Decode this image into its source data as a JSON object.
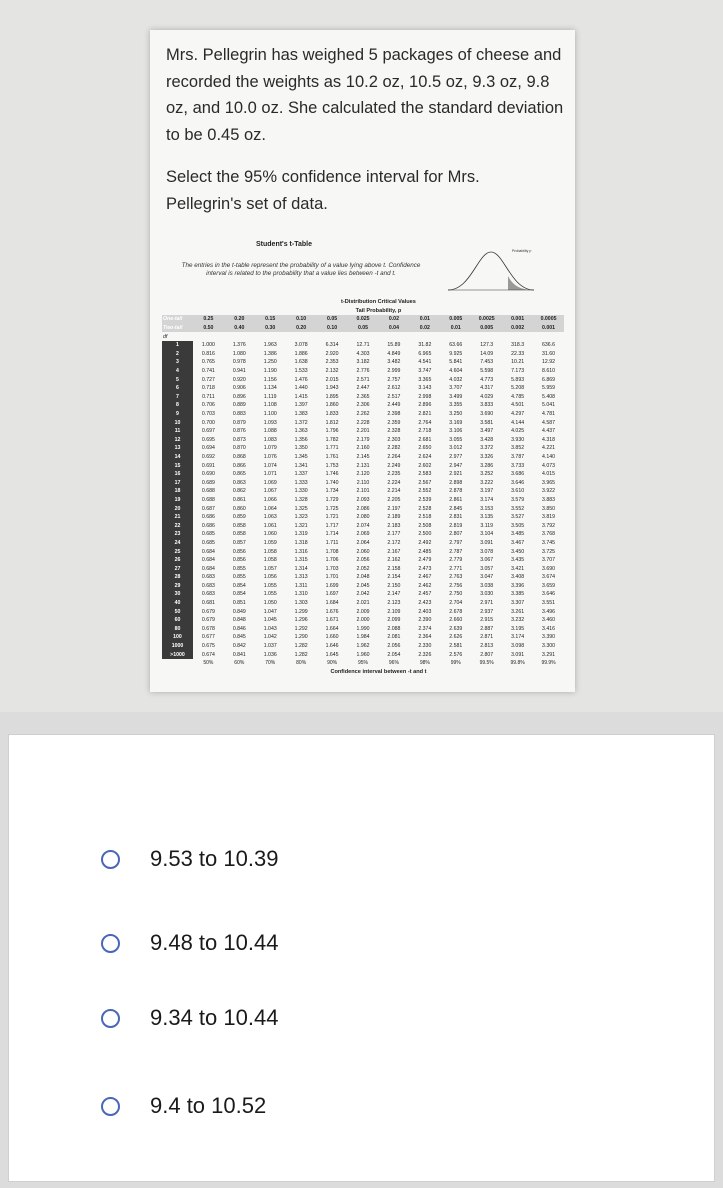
{
  "question": {
    "text": "Mrs. Pellegrin has weighed 5 packages of cheese and recorded the weights as 10.2 oz, 10.5 oz, 9.3 oz, 9.8 oz, and 10.0 oz.  She calculated the standard deviation to be 0.45 oz.",
    "prompt": "Select the 95% confidence interval for Mrs. Pellegrin's set of data."
  },
  "t_table": {
    "title": "Student's t-Table",
    "description": "The entries in the t-table represent the probability of a value lying above t. Confidence interval is related to the probability that a value lies between -t and t.",
    "figure_label": "Probability p",
    "header": "t-Distribution Critical Values",
    "tail_header": "Tail Probability, p",
    "one_tail_label": "One-tail",
    "one_tail": [
      "0.25",
      "0.20",
      "0.15",
      "0.10",
      "0.05",
      "0.025",
      "0.02",
      "0.01",
      "0.005",
      "0.0025",
      "0.001",
      "0.0005"
    ],
    "two_tail_label": "Two-tail",
    "two_tail": [
      "0.50",
      "0.40",
      "0.30",
      "0.20",
      "0.10",
      "0.05",
      "0.04",
      "0.02",
      "0.01",
      "0.005",
      "0.002",
      "0.001"
    ],
    "df_label": "df",
    "rows": [
      {
        "df": "1",
        "values": [
          "1.000",
          "1.376",
          "1.963",
          "3.078",
          "6.314",
          "12.71",
          "15.89",
          "31.82",
          "63.66",
          "127.3",
          "318.3",
          "636.6"
        ]
      },
      {
        "df": "2",
        "values": [
          "0.816",
          "1.080",
          "1.386",
          "1.886",
          "2.920",
          "4.303",
          "4.849",
          "6.965",
          "9.925",
          "14.09",
          "22.33",
          "31.60"
        ]
      },
      {
        "df": "3",
        "values": [
          "0.765",
          "0.978",
          "1.250",
          "1.638",
          "2.353",
          "3.182",
          "3.482",
          "4.541",
          "5.841",
          "7.453",
          "10.21",
          "12.92"
        ]
      },
      {
        "df": "4",
        "values": [
          "0.741",
          "0.941",
          "1.190",
          "1.533",
          "2.132",
          "2.776",
          "2.999",
          "3.747",
          "4.604",
          "5.598",
          "7.173",
          "8.610"
        ]
      },
      {
        "df": "5",
        "values": [
          "0.727",
          "0.920",
          "1.156",
          "1.476",
          "2.015",
          "2.571",
          "2.757",
          "3.365",
          "4.032",
          "4.773",
          "5.893",
          "6.869"
        ]
      },
      {
        "df": "6",
        "values": [
          "0.718",
          "0.906",
          "1.134",
          "1.440",
          "1.943",
          "2.447",
          "2.612",
          "3.143",
          "3.707",
          "4.317",
          "5.208",
          "5.959"
        ]
      },
      {
        "df": "7",
        "values": [
          "0.711",
          "0.896",
          "1.119",
          "1.415",
          "1.895",
          "2.365",
          "2.517",
          "2.998",
          "3.499",
          "4.029",
          "4.785",
          "5.408"
        ]
      },
      {
        "df": "8",
        "values": [
          "0.706",
          "0.889",
          "1.108",
          "1.397",
          "1.860",
          "2.306",
          "2.449",
          "2.896",
          "3.355",
          "3.833",
          "4.501",
          "5.041"
        ]
      },
      {
        "df": "9",
        "values": [
          "0.703",
          "0.883",
          "1.100",
          "1.383",
          "1.833",
          "2.262",
          "2.398",
          "2.821",
          "3.250",
          "3.690",
          "4.297",
          "4.781"
        ]
      },
      {
        "df": "10",
        "values": [
          "0.700",
          "0.879",
          "1.093",
          "1.372",
          "1.812",
          "2.228",
          "2.359",
          "2.764",
          "3.169",
          "3.581",
          "4.144",
          "4.587"
        ]
      },
      {
        "df": "11",
        "values": [
          "0.697",
          "0.876",
          "1.088",
          "1.363",
          "1.796",
          "2.201",
          "2.328",
          "2.718",
          "3.106",
          "3.497",
          "4.025",
          "4.437"
        ]
      },
      {
        "df": "12",
        "values": [
          "0.695",
          "0.873",
          "1.083",
          "1.356",
          "1.782",
          "2.179",
          "2.303",
          "2.681",
          "3.055",
          "3.428",
          "3.930",
          "4.318"
        ]
      },
      {
        "df": "13",
        "values": [
          "0.694",
          "0.870",
          "1.079",
          "1.350",
          "1.771",
          "2.160",
          "2.282",
          "2.650",
          "3.012",
          "3.372",
          "3.852",
          "4.221"
        ]
      },
      {
        "df": "14",
        "values": [
          "0.692",
          "0.868",
          "1.076",
          "1.345",
          "1.761",
          "2.145",
          "2.264",
          "2.624",
          "2.977",
          "3.326",
          "3.787",
          "4.140"
        ]
      },
      {
        "df": "15",
        "values": [
          "0.691",
          "0.866",
          "1.074",
          "1.341",
          "1.753",
          "2.131",
          "2.249",
          "2.602",
          "2.947",
          "3.286",
          "3.733",
          "4.073"
        ]
      },
      {
        "df": "16",
        "values": [
          "0.690",
          "0.865",
          "1.071",
          "1.337",
          "1.746",
          "2.120",
          "2.235",
          "2.583",
          "2.921",
          "3.252",
          "3.686",
          "4.015"
        ]
      },
      {
        "df": "17",
        "values": [
          "0.689",
          "0.863",
          "1.069",
          "1.333",
          "1.740",
          "2.110",
          "2.224",
          "2.567",
          "2.898",
          "3.222",
          "3.646",
          "3.965"
        ]
      },
      {
        "df": "18",
        "values": [
          "0.688",
          "0.862",
          "1.067",
          "1.330",
          "1.734",
          "2.101",
          "2.214",
          "2.552",
          "2.878",
          "3.197",
          "3.610",
          "3.922"
        ]
      },
      {
        "df": "19",
        "values": [
          "0.688",
          "0.861",
          "1.066",
          "1.328",
          "1.729",
          "2.093",
          "2.205",
          "2.539",
          "2.861",
          "3.174",
          "3.579",
          "3.883"
        ]
      },
      {
        "df": "20",
        "values": [
          "0.687",
          "0.860",
          "1.064",
          "1.325",
          "1.725",
          "2.086",
          "2.197",
          "2.528",
          "2.845",
          "3.153",
          "3.552",
          "3.850"
        ]
      },
      {
        "df": "21",
        "values": [
          "0.686",
          "0.859",
          "1.063",
          "1.323",
          "1.721",
          "2.080",
          "2.189",
          "2.518",
          "2.831",
          "3.135",
          "3.527",
          "3.819"
        ]
      },
      {
        "df": "22",
        "values": [
          "0.686",
          "0.858",
          "1.061",
          "1.321",
          "1.717",
          "2.074",
          "2.183",
          "2.508",
          "2.819",
          "3.119",
          "3.505",
          "3.792"
        ]
      },
      {
        "df": "23",
        "values": [
          "0.685",
          "0.858",
          "1.060",
          "1.319",
          "1.714",
          "2.069",
          "2.177",
          "2.500",
          "2.807",
          "3.104",
          "3.485",
          "3.768"
        ]
      },
      {
        "df": "24",
        "values": [
          "0.685",
          "0.857",
          "1.059",
          "1.318",
          "1.711",
          "2.064",
          "2.172",
          "2.492",
          "2.797",
          "3.091",
          "3.467",
          "3.745"
        ]
      },
      {
        "df": "25",
        "values": [
          "0.684",
          "0.856",
          "1.058",
          "1.316",
          "1.708",
          "2.060",
          "2.167",
          "2.485",
          "2.787",
          "3.078",
          "3.450",
          "3.725"
        ]
      },
      {
        "df": "26",
        "values": [
          "0.684",
          "0.856",
          "1.058",
          "1.315",
          "1.706",
          "2.056",
          "2.162",
          "2.479",
          "2.779",
          "3.067",
          "3.435",
          "3.707"
        ]
      },
      {
        "df": "27",
        "values": [
          "0.684",
          "0.855",
          "1.057",
          "1.314",
          "1.703",
          "2.052",
          "2.158",
          "2.473",
          "2.771",
          "3.057",
          "3.421",
          "3.690"
        ]
      },
      {
        "df": "28",
        "values": [
          "0.683",
          "0.855",
          "1.056",
          "1.313",
          "1.701",
          "2.048",
          "2.154",
          "2.467",
          "2.763",
          "3.047",
          "3.408",
          "3.674"
        ]
      },
      {
        "df": "29",
        "values": [
          "0.683",
          "0.854",
          "1.055",
          "1.311",
          "1.699",
          "2.045",
          "2.150",
          "2.462",
          "2.756",
          "3.038",
          "3.396",
          "3.659"
        ]
      },
      {
        "df": "30",
        "values": [
          "0.683",
          "0.854",
          "1.055",
          "1.310",
          "1.697",
          "2.042",
          "2.147",
          "2.457",
          "2.750",
          "3.030",
          "3.385",
          "3.646"
        ]
      },
      {
        "df": "40",
        "values": [
          "0.681",
          "0.851",
          "1.050",
          "1.303",
          "1.684",
          "2.021",
          "2.123",
          "2.423",
          "2.704",
          "2.971",
          "3.307",
          "3.551"
        ]
      },
      {
        "df": "50",
        "values": [
          "0.679",
          "0.849",
          "1.047",
          "1.299",
          "1.676",
          "2.009",
          "2.109",
          "2.403",
          "2.678",
          "2.937",
          "3.261",
          "3.496"
        ]
      },
      {
        "df": "60",
        "values": [
          "0.679",
          "0.848",
          "1.045",
          "1.296",
          "1.671",
          "2.000",
          "2.099",
          "2.390",
          "2.660",
          "2.915",
          "3.232",
          "3.460"
        ]
      },
      {
        "df": "80",
        "values": [
          "0.678",
          "0.846",
          "1.043",
          "1.292",
          "1.664",
          "1.990",
          "2.088",
          "2.374",
          "2.639",
          "2.887",
          "3.195",
          "3.416"
        ]
      },
      {
        "df": "100",
        "values": [
          "0.677",
          "0.845",
          "1.042",
          "1.290",
          "1.660",
          "1.984",
          "2.081",
          "2.364",
          "2.626",
          "2.871",
          "3.174",
          "3.390"
        ]
      },
      {
        "df": "1000",
        "values": [
          "0.675",
          "0.842",
          "1.037",
          "1.282",
          "1.646",
          "1.962",
          "2.056",
          "2.330",
          "2.581",
          "2.813",
          "3.098",
          "3.300"
        ]
      },
      {
        "df": ">1000",
        "values": [
          "0.674",
          "0.841",
          "1.036",
          "1.282",
          "1.645",
          "1.960",
          "2.054",
          "2.326",
          "2.576",
          "2.807",
          "3.091",
          "3.291"
        ]
      }
    ],
    "confidence": [
      "50%",
      "60%",
      "70%",
      "80%",
      "90%",
      "95%",
      "96%",
      "98%",
      "99%",
      "99.5%",
      "99.8%",
      "99.9%"
    ],
    "confidence_label": "Confidence interval between -t and t"
  },
  "options": [
    "9.53 to 10.39",
    "9.48 to 10.44",
    "9.34 to 10.44",
    "9.4 to 10.52"
  ]
}
